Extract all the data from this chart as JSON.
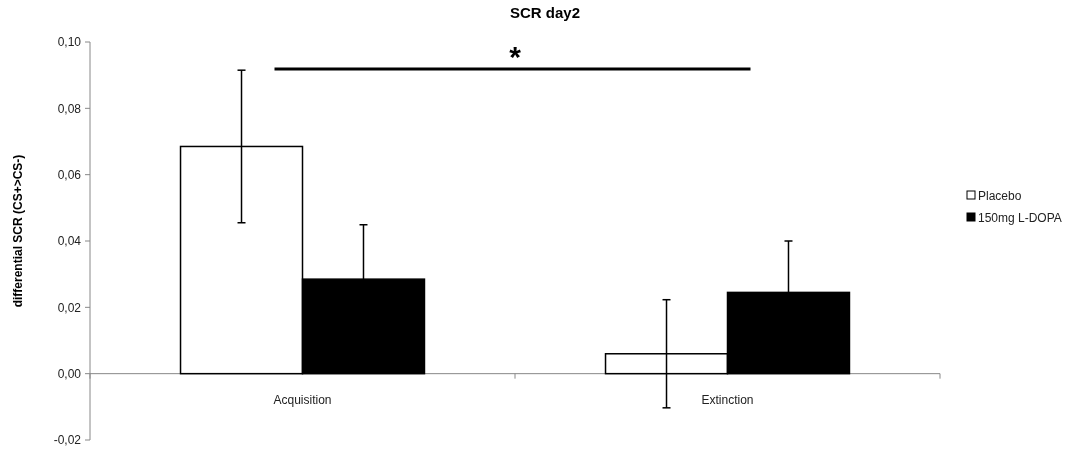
{
  "chart_data": {
    "type": "bar",
    "title": "SCR day2",
    "ylabel": "differential SCR (CS+>CS-)",
    "categories": [
      "Acquisition",
      "Extinction"
    ],
    "series": [
      {
        "name": "Placebo",
        "color": "#ffffff",
        "values": [
          0.0685,
          0.006
        ],
        "errors": [
          0.023,
          0.0163
        ]
      },
      {
        "name": "150mg L-DOPA",
        "color": "#000000",
        "values": [
          0.0285,
          0.0245
        ],
        "errors": [
          0.0164,
          0.0155
        ]
      }
    ],
    "ylim": [
      -0.02,
      0.1
    ],
    "yticks": [
      {
        "value": -0.02,
        "label": "-0,02"
      },
      {
        "value": 0,
        "label": "0,00"
      },
      {
        "value": 0.02,
        "label": "0,02"
      },
      {
        "value": 0.04,
        "label": "0,04"
      },
      {
        "value": 0.06,
        "label": "0,06"
      },
      {
        "value": 0.08,
        "label": "0,08"
      },
      {
        "value": 0.1,
        "label": "0,10"
      }
    ],
    "annotations": [
      "*"
    ],
    "grid": false,
    "legend": "right"
  }
}
